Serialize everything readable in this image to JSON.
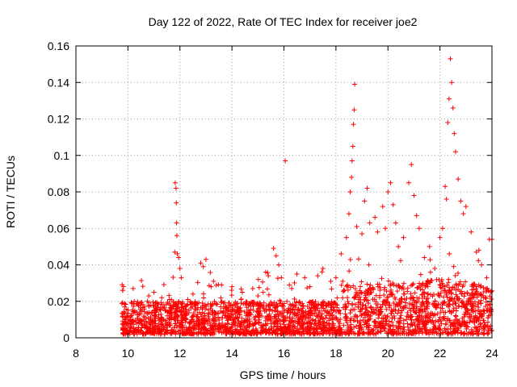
{
  "chart_data": {
    "type": "scatter",
    "title": "Day 122 of 2022, Rate Of TEC Index for receiver joe2",
    "xlabel": "GPS time / hours",
    "ylabel": "ROTI / TECUs",
    "xlim": [
      8,
      24
    ],
    "ylim": [
      0,
      0.16
    ],
    "x_ticks": [
      "8",
      "10",
      "12",
      "14",
      "16",
      "18",
      "20",
      "22",
      "24"
    ],
    "y_ticks": [
      "0",
      "0.02",
      "0.04",
      "0.06",
      "0.08",
      "0.1",
      "0.12",
      "0.14",
      "0.16"
    ],
    "grid": true,
    "marker": "+",
    "color": "#ff0000",
    "series": [
      {
        "points": [
          [
            9.8,
            0.026
          ],
          [
            10.0,
            0.012
          ],
          [
            10.2,
            0.027
          ],
          [
            10.5,
            0.018
          ],
          [
            10.8,
            0.023
          ],
          [
            11.0,
            0.025
          ],
          [
            11.3,
            0.022
          ],
          [
            11.6,
            0.021
          ],
          [
            11.8,
            0.047
          ],
          [
            11.82,
            0.085
          ],
          [
            11.85,
            0.082
          ],
          [
            11.86,
            0.074
          ],
          [
            11.87,
            0.063
          ],
          [
            11.88,
            0.056
          ],
          [
            11.9,
            0.046
          ],
          [
            11.95,
            0.044
          ],
          [
            12.0,
            0.038
          ],
          [
            12.05,
            0.033
          ],
          [
            12.3,
            0.021
          ],
          [
            12.5,
            0.024
          ],
          [
            12.8,
            0.041
          ],
          [
            12.9,
            0.039
          ],
          [
            13.0,
            0.043
          ],
          [
            13.2,
            0.028
          ],
          [
            13.6,
            0.029
          ],
          [
            14.0,
            0.028
          ],
          [
            14.4,
            0.025
          ],
          [
            14.8,
            0.027
          ],
          [
            15.0,
            0.023
          ],
          [
            15.2,
            0.025
          ],
          [
            15.3,
            0.036
          ],
          [
            15.4,
            0.034
          ],
          [
            15.6,
            0.049
          ],
          [
            15.7,
            0.045
          ],
          [
            15.8,
            0.04
          ],
          [
            15.9,
            0.033
          ],
          [
            16.05,
            0.097
          ],
          [
            16.3,
            0.027
          ],
          [
            16.5,
            0.035
          ],
          [
            16.8,
            0.033
          ],
          [
            17.0,
            0.028
          ],
          [
            17.3,
            0.034
          ],
          [
            17.5,
            0.038
          ],
          [
            17.8,
            0.031
          ],
          [
            18.0,
            0.033
          ],
          [
            18.2,
            0.046
          ],
          [
            18.4,
            0.055
          ],
          [
            18.5,
            0.068
          ],
          [
            18.55,
            0.08
          ],
          [
            18.6,
            0.088
          ],
          [
            18.62,
            0.097
          ],
          [
            18.65,
            0.105
          ],
          [
            18.67,
            0.117
          ],
          [
            18.7,
            0.125
          ],
          [
            18.72,
            0.139
          ],
          [
            18.8,
            0.061
          ],
          [
            19.0,
            0.057
          ],
          [
            19.1,
            0.075
          ],
          [
            19.2,
            0.082
          ],
          [
            19.3,
            0.063
          ],
          [
            19.5,
            0.066
          ],
          [
            19.6,
            0.058
          ],
          [
            19.8,
            0.072
          ],
          [
            19.9,
            0.06
          ],
          [
            20.0,
            0.08
          ],
          [
            20.1,
            0.085
          ],
          [
            20.2,
            0.073
          ],
          [
            20.3,
            0.063
          ],
          [
            20.4,
            0.05
          ],
          [
            20.6,
            0.055
          ],
          [
            20.8,
            0.085
          ],
          [
            20.9,
            0.095
          ],
          [
            21.0,
            0.078
          ],
          [
            21.1,
            0.067
          ],
          [
            21.2,
            0.06
          ],
          [
            21.4,
            0.044
          ],
          [
            21.6,
            0.05
          ],
          [
            21.8,
            0.038
          ],
          [
            22.0,
            0.055
          ],
          [
            22.1,
            0.06
          ],
          [
            22.2,
            0.083
          ],
          [
            22.25,
            0.076
          ],
          [
            22.3,
            0.118
          ],
          [
            22.35,
            0.131
          ],
          [
            22.4,
            0.153
          ],
          [
            22.45,
            0.14
          ],
          [
            22.5,
            0.126
          ],
          [
            22.55,
            0.112
          ],
          [
            22.6,
            0.102
          ],
          [
            22.7,
            0.087
          ],
          [
            22.8,
            0.075
          ],
          [
            22.9,
            0.068
          ],
          [
            23.0,
            0.072
          ],
          [
            23.2,
            0.058
          ],
          [
            23.4,
            0.047
          ],
          [
            23.6,
            0.04
          ],
          [
            23.8,
            0.033
          ],
          [
            23.9,
            0.054
          ],
          [
            24.0,
            0.054
          ],
          [
            23.95,
            0.005
          ]
        ]
      }
    ]
  }
}
